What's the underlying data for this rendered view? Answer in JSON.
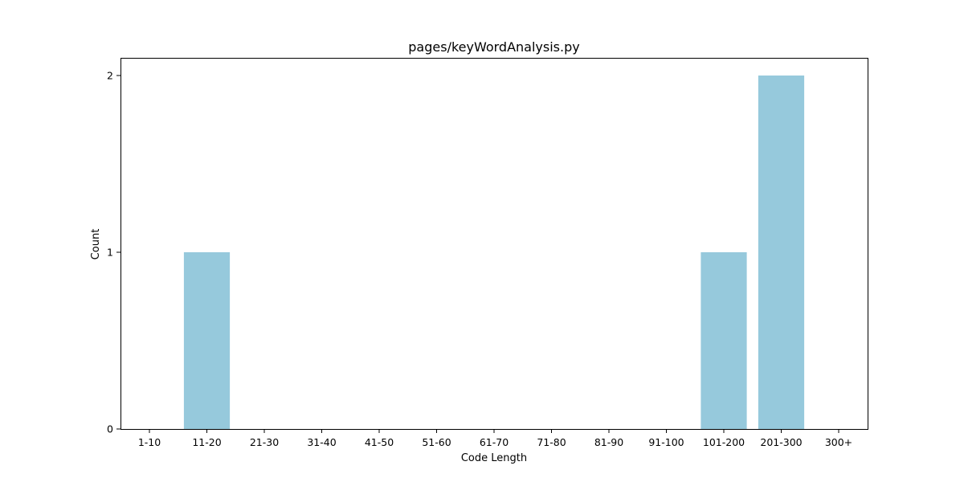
{
  "chart_data": {
    "type": "bar",
    "title": "pages/keyWordAnalysis.py",
    "xlabel": "Code Length",
    "ylabel": "Count",
    "categories": [
      "1-10",
      "11-20",
      "21-30",
      "31-40",
      "41-50",
      "51-60",
      "61-70",
      "71-80",
      "81-90",
      "91-100",
      "101-200",
      "201-300",
      "300+"
    ],
    "values": [
      0,
      1,
      0,
      0,
      0,
      0,
      0,
      0,
      0,
      0,
      1,
      2,
      0
    ],
    "yticks": [
      "0",
      "1",
      "2"
    ],
    "ylim": [
      0,
      2.1
    ],
    "grid": false,
    "bar_color": "#96c9dc"
  }
}
